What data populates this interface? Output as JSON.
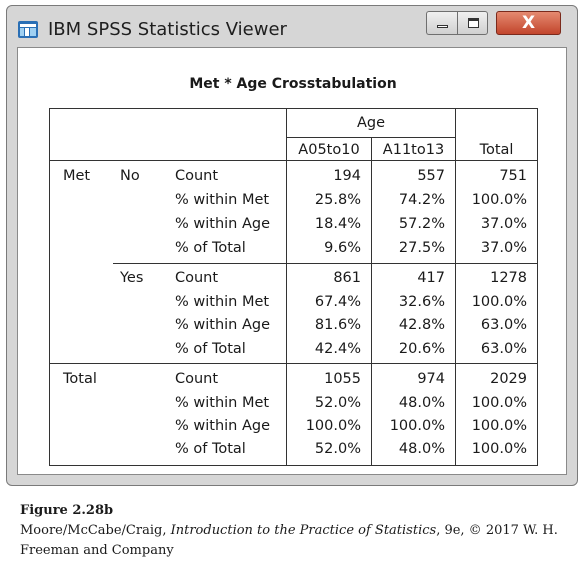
{
  "window": {
    "title": "IBM SPSS Statistics Viewer",
    "close_glyph": "X",
    "icons": [
      "spss-viewer-icon",
      "minimize-icon",
      "maximize-icon",
      "close-icon"
    ]
  },
  "table": {
    "title": "Met * Age Crosstabulation",
    "column_group_header": "Age",
    "columns": [
      "A05to10",
      "A11to13",
      "Total"
    ],
    "row_var_label": "Met",
    "groups": [
      {
        "level": "No",
        "rows": [
          {
            "stat": "Count",
            "values": [
              "194",
              "557",
              "751"
            ]
          },
          {
            "stat": "% within Met",
            "values": [
              "25.8%",
              "74.2%",
              "100.0%"
            ]
          },
          {
            "stat": "% within Age",
            "values": [
              "18.4%",
              "57.2%",
              "37.0%"
            ]
          },
          {
            "stat": "% of Total",
            "values": [
              "9.6%",
              "27.5%",
              "37.0%"
            ]
          }
        ]
      },
      {
        "level": "Yes",
        "rows": [
          {
            "stat": "Count",
            "values": [
              "861",
              "417",
              "1278"
            ]
          },
          {
            "stat": "% within Met",
            "values": [
              "67.4%",
              "32.6%",
              "100.0%"
            ]
          },
          {
            "stat": "% within Age",
            "values": [
              "81.6%",
              "42.8%",
              "63.0%"
            ]
          },
          {
            "stat": "% of Total",
            "values": [
              "42.4%",
              "20.6%",
              "63.0%"
            ]
          }
        ]
      }
    ],
    "total": {
      "label": "Total",
      "rows": [
        {
          "stat": "Count",
          "values": [
            "1055",
            "974",
            "2029"
          ]
        },
        {
          "stat": "% within Met",
          "values": [
            "52.0%",
            "48.0%",
            "100.0%"
          ]
        },
        {
          "stat": "% within Age",
          "values": [
            "100.0%",
            "100.0%",
            "100.0%"
          ]
        },
        {
          "stat": "% of Total",
          "values": [
            "52.0%",
            "48.0%",
            "100.0%"
          ]
        }
      ]
    }
  },
  "caption": {
    "figure_label": "Figure 2.28b",
    "credit_authors": "Moore/McCabe/Craig, ",
    "credit_book": "Introduction to the Practice of Statistics",
    "credit_rest": ", 9e, © 2017 W. H. Freeman and Company"
  },
  "colors": {
    "window_chrome": "#d6d6d6",
    "close_button": "#c2452c",
    "grid_lines": "#333333",
    "text": "#1a1a1a"
  }
}
